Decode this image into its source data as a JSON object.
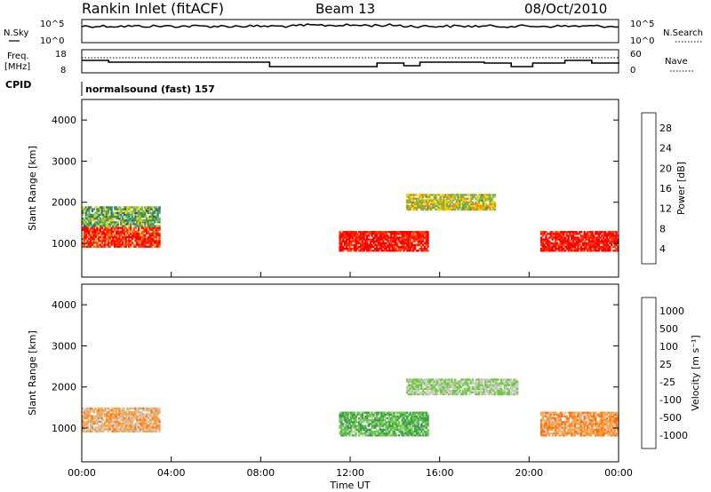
{
  "header": {
    "title": "Rankin Inlet (fitACF)",
    "beam": "Beam 13",
    "date": "08/Oct/2010"
  },
  "sky_panel": {
    "left_label": "N.Sky",
    "right_label": "N.Search",
    "left_ticks": [
      "10^5",
      "10^0"
    ],
    "right_ticks": [
      "10^5",
      "10^0"
    ]
  },
  "freq_panel": {
    "left_label_1": "Freq.",
    "left_label_2": "[MHz]",
    "right_label": "Nave",
    "left_ticks": [
      "18",
      "8"
    ],
    "right_ticks": [
      "60",
      "0"
    ]
  },
  "cpid": {
    "label": "CPID",
    "mode": "normalsound (fast) 157"
  },
  "power_panel": {
    "ylabel": "Slant Range [km]",
    "yticks": [
      "4000",
      "3000",
      "2000",
      "1000"
    ],
    "colorbar_label": "Power [dB]",
    "colorbar_ticks": [
      "28",
      "24",
      "20",
      "16",
      "12",
      "8",
      "4"
    ],
    "colors": [
      "#0000ff",
      "#2a52a8",
      "#3a8c62",
      "#6db35a",
      "#f0d000",
      "#ff8a00",
      "#ff4000",
      "#ff0000"
    ]
  },
  "velocity_panel": {
    "ylabel": "Slant Range [km]",
    "yticks": [
      "4000",
      "3000",
      "2000",
      "1000"
    ],
    "colorbar_label": "Velocity [m s⁻¹]",
    "colorbar_ticks": [
      "1000",
      "500",
      "100",
      "25",
      "-25",
      "-100",
      "-500",
      "-1000"
    ],
    "colors": [
      "#1d3fa0",
      "#2e7a7a",
      "#3c9a5a",
      "#6ccc40",
      "#c8c8c0",
      "#ffa040",
      "#ff7010",
      "#ff0000"
    ]
  },
  "xaxis": {
    "label": "Time UT",
    "ticks": [
      "00:00",
      "04:00",
      "08:00",
      "12:00",
      "16:00",
      "20:00",
      "00:00"
    ]
  },
  "chart_data": [
    {
      "type": "heatmap",
      "title": "Rankin Inlet (fitACF) Beam 13 08/Oct/2010",
      "xlabel": "Time UT",
      "ylabel": "Slant Range [km]",
      "xlim": [
        "00:00",
        "24:00"
      ],
      "ylim": [
        180,
        4500
      ],
      "colorbar": {
        "label": "Power [dB]",
        "range": [
          0,
          30
        ],
        "ticks": [
          4,
          8,
          12,
          16,
          20,
          24,
          28
        ]
      },
      "series": [
        {
          "name": "",
          "regions": [
            {
              "t": [
                0,
                3.5
              ],
              "range": [
                900,
                1400
              ],
              "value": 26
            },
            {
              "t": [
                0,
                3.5
              ],
              "range": [
                1400,
                1900
              ],
              "value": 12
            },
            {
              "t": [
                11.5,
                15.5
              ],
              "range": [
                800,
                1300
              ],
              "value": 28
            },
            {
              "t": [
                14.5,
                18.5
              ],
              "range": [
                1800,
                2200
              ],
              "value": 16
            },
            {
              "t": [
                20.5,
                24
              ],
              "range": [
                800,
                1300
              ],
              "value": 28
            }
          ]
        }
      ]
    },
    {
      "type": "heatmap",
      "title": "Rankin Inlet (fitACF) Beam 13 08/Oct/2010",
      "xlabel": "Time UT",
      "ylabel": "Slant Range [km]",
      "xlim": [
        "00:00",
        "24:00"
      ],
      "ylim": [
        180,
        4500
      ],
      "colorbar": {
        "label": "Velocity [m s⁻¹]",
        "range": [
          -1000,
          1000
        ],
        "ticks": [
          1000,
          500,
          100,
          25,
          -25,
          -100,
          -500,
          -1000
        ]
      },
      "series": [
        {
          "name": "",
          "regions": [
            {
              "t": [
                0,
                3.5
              ],
              "range": [
                900,
                1500
              ],
              "value": -300
            },
            {
              "t": [
                11.5,
                15.5
              ],
              "range": [
                800,
                1400
              ],
              "value": 200
            },
            {
              "t": [
                14.5,
                19.5
              ],
              "range": [
                1800,
                2200
              ],
              "value": 0
            },
            {
              "t": [
                20.5,
                24
              ],
              "range": [
                800,
                1400
              ],
              "value": -400
            }
          ]
        }
      ]
    }
  ]
}
